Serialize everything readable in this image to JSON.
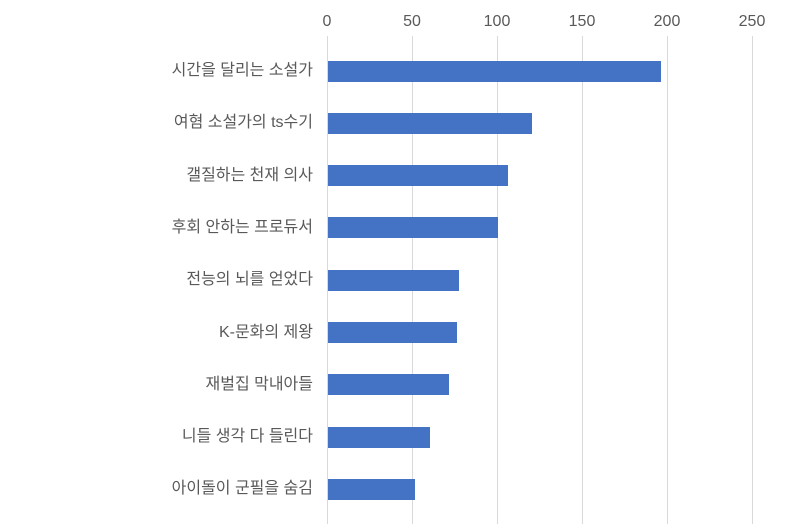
{
  "chart_data": {
    "type": "bar",
    "orientation": "horizontal",
    "title": "",
    "xlabel": "",
    "ylabel": "",
    "categories": [
      "시간을 달리는 소설가",
      "여혐 소설가의 ts수기",
      "갤질하는 천재 의사",
      "후회 안하는 프로듀서",
      "전능의 뇌를 얻었다",
      "K-문화의 제왕",
      "재벌집 막내아들",
      "니들 생각 다 들린다",
      "아이돌이 군필을 숨김"
    ],
    "values": [
      196,
      120,
      106,
      100,
      77,
      76,
      71,
      60,
      51
    ],
    "xlim": [
      0,
      250
    ],
    "x_ticks": [
      0,
      50,
      100,
      150,
      200,
      250
    ],
    "x_axis_position": "top",
    "grid": true,
    "legend": false,
    "colors": {
      "bar": "#4472C4",
      "gridline": "#D9D9D9",
      "tick_mark": "#D9D9D9",
      "text": "#595959",
      "background": "#FFFFFF"
    }
  }
}
